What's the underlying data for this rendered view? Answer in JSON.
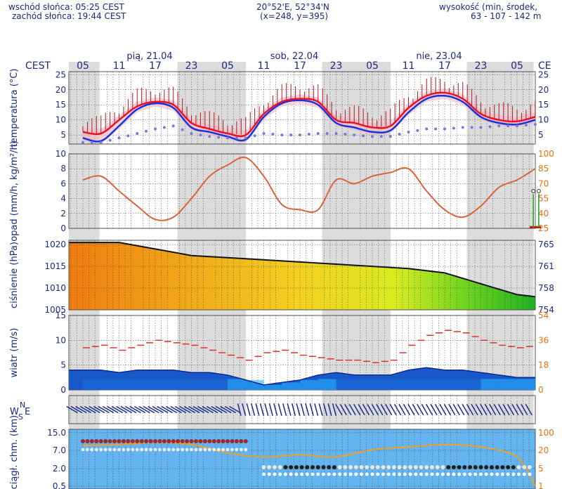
{
  "header": {
    "sunrise": "wschód słońca: 05:25 CEST",
    "sunset": "zachód słońca: 19:44 CEST",
    "coords": "20°52'E, 52°34'N",
    "grid": "(x=248,  y=395)",
    "altitude_label": "wysokość (min, środek,",
    "altitude_values": "63 - 107 - 142 m"
  },
  "timeaxis": {
    "zone_left": "CEST",
    "zone_right": "CE",
    "days": [
      {
        "label": "pią, 21.04",
        "hour_index": 2
      },
      {
        "label": "sob, 22.04",
        "hour_index": 6
      },
      {
        "label": "nie, 23.04",
        "hour_index": 10
      }
    ],
    "hours": [
      "05",
      "11",
      "17",
      "23",
      "05",
      "11",
      "17",
      "23",
      "05",
      "11",
      "17",
      "23",
      "05"
    ],
    "night_bands": [
      [
        0,
        0.4
      ],
      [
        3,
        4.45
      ],
      [
        7,
        8.45
      ],
      [
        11,
        12.4
      ]
    ]
  },
  "colors": {
    "axis_text": "#1a2a80",
    "temp_red": "#e8102a",
    "temp_blue": "#1434e0",
    "dew": "#7a78d8",
    "precip_curve": "#d9643a",
    "right_orange": "#e8700c",
    "wind_dark": "#1858c8",
    "wind_light": "#2ab2ff",
    "cloud_bg": "#64b4f0",
    "vis": "#f0a020"
  },
  "chart_data": [
    {
      "type": "line",
      "panel": "temperature",
      "ylabel": "temperatura (°C)",
      "y_ticks": [
        5,
        10,
        15,
        20,
        25
      ],
      "ylim": [
        2,
        26
      ],
      "right_ticks": [
        5,
        10,
        15,
        20,
        25
      ],
      "x": [
        0,
        0.5,
        1,
        1.5,
        2,
        2.5,
        3,
        3.5,
        4,
        4.5,
        5,
        5.5,
        6,
        6.5,
        7,
        7.5,
        8,
        8.5,
        9,
        9.5,
        10,
        10.5,
        11,
        11.5,
        12,
        12.5
      ],
      "series": [
        {
          "values": [
            6,
            5.5,
            10,
            14.5,
            16,
            15,
            9,
            7,
            5.5,
            5,
            12,
            16,
            17,
            16,
            10,
            9,
            7.5,
            8,
            14,
            18,
            19,
            17,
            12,
            10,
            9.5,
            11
          ]
        },
        {
          "values": [
            4,
            3,
            8,
            13.5,
            15.5,
            14,
            7.5,
            6,
            4.5,
            3.5,
            11,
            15.5,
            16.5,
            15,
            9,
            7.5,
            6,
            6.5,
            12.5,
            17,
            18,
            16,
            11,
            9,
            8.5,
            10
          ]
        },
        {
          "values": [
            2.5,
            2.5,
            4,
            5.5,
            7,
            8,
            5.5,
            4.5,
            4,
            4,
            5.5,
            5,
            5,
            5.5,
            5.5,
            5,
            4.5,
            4.5,
            6,
            7,
            7,
            7.5,
            7.5,
            8,
            8,
            8.5
          ]
        }
      ]
    },
    {
      "type": "line",
      "panel": "precipitation",
      "ylabel": "opad (mm/h, kg/m²/h)",
      "y_ticks": [
        0,
        2,
        4,
        6,
        8,
        10
      ],
      "ylim": [
        0,
        10
      ],
      "right_ticks": [
        "25",
        "40",
        "55",
        "70",
        "85",
        "100"
      ],
      "x": [
        0,
        0.5,
        1,
        1.5,
        2,
        2.5,
        3,
        3.5,
        4,
        4.5,
        5,
        5.5,
        6,
        6.5,
        7,
        7.5,
        8,
        8.5,
        9,
        9.5,
        10,
        10.5,
        11,
        11.5,
        12,
        12.5
      ],
      "series": [
        {
          "values": [
            6.5,
            7,
            5,
            3,
            1.2,
            1.5,
            4,
            7,
            8.5,
            9.5,
            7,
            3.2,
            2.5,
            2.5,
            6.5,
            6,
            7,
            7.5,
            8,
            5,
            2.5,
            1.5,
            3,
            5.5,
            6.5,
            8
          ]
        }
      ]
    },
    {
      "type": "area",
      "panel": "pressure",
      "ylabel": "ciśnienie (hPa)",
      "y_ticks": [
        1005,
        1010,
        1015,
        1020
      ],
      "ylim": [
        1005,
        1021
      ],
      "right_ticks": [
        "754",
        "758",
        "761",
        "765"
      ],
      "x": [
        0,
        1,
        2,
        3,
        4,
        5,
        6,
        7,
        8,
        9,
        10,
        11,
        12,
        12.5
      ],
      "series": [
        {
          "values": [
            1020.5,
            1020.5,
            1019,
            1017.5,
            1017,
            1016.5,
            1016,
            1015.5,
            1015,
            1014.5,
            1013.5,
            1011,
            1008.5,
            1008
          ]
        }
      ]
    },
    {
      "type": "line",
      "panel": "wind",
      "ylabel": "wiatr (m/s)",
      "y_ticks": [
        0,
        5,
        10,
        15
      ],
      "ylim": [
        0,
        15
      ],
      "right_ticks": [
        "0",
        "18",
        "36",
        "54"
      ],
      "x": [
        0,
        0.5,
        1,
        1.5,
        2,
        2.5,
        3,
        3.5,
        4,
        4.5,
        5,
        5.5,
        6,
        6.5,
        7,
        7.5,
        8,
        8.5,
        9,
        9.5,
        10,
        10.5,
        11,
        11.5,
        12,
        12.5
      ],
      "series": [
        {
          "values": [
            8.5,
            9,
            8,
            9,
            10,
            9.5,
            9,
            8,
            7,
            6,
            7.5,
            8,
            7,
            6.5,
            6,
            6,
            5.5,
            6,
            9,
            11,
            12,
            11.5,
            10,
            9,
            8.5,
            9
          ]
        },
        {
          "values": [
            4,
            4,
            3.5,
            4,
            4,
            4,
            3.5,
            3.5,
            3,
            2,
            1,
            1.5,
            2,
            3,
            3.5,
            3,
            3,
            3,
            4,
            4.5,
            4,
            4,
            3.5,
            3,
            2.5,
            2.5
          ]
        }
      ]
    },
    {
      "type": "scatter",
      "panel": "wind_direction",
      "ylabel": "W N S E"
    },
    {
      "type": "line",
      "panel": "clouds",
      "ylabel": "rozciągł. chm. (km)",
      "y_ticks": [
        "15.0",
        "7.0",
        "2.0",
        "0.5"
      ],
      "right_ticks": [
        "100",
        "20",
        "5",
        "1"
      ],
      "x": [
        0,
        1,
        2,
        3,
        4,
        5,
        6,
        7,
        8,
        9,
        10,
        11,
        12,
        12.5
      ],
      "series": [
        {
          "values": [
            7.5,
            8,
            9,
            8,
            5,
            4,
            4.5,
            4,
            6,
            7,
            8,
            7,
            4,
            0.5
          ]
        }
      ]
    }
  ]
}
